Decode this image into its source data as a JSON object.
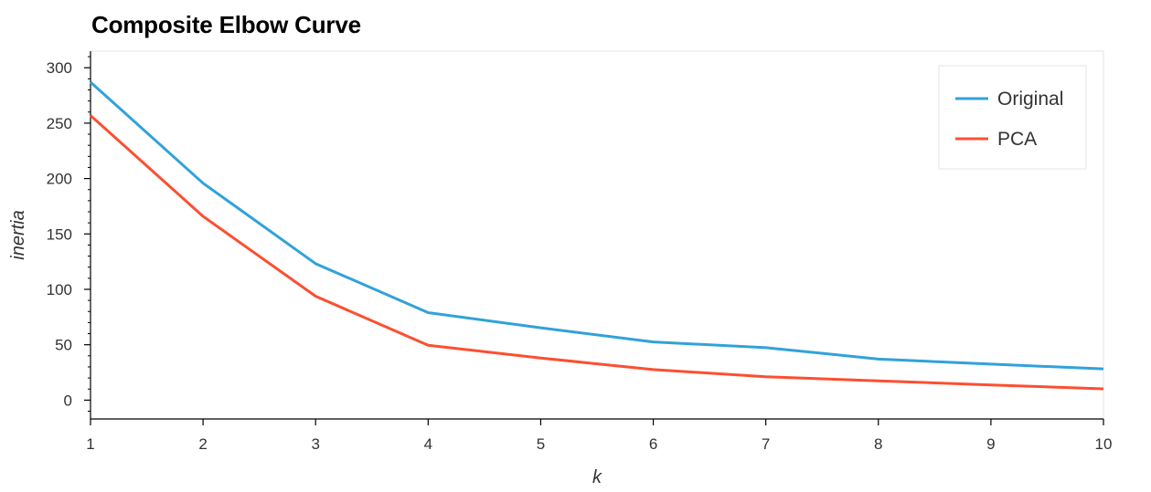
{
  "chart_data": {
    "type": "line",
    "title": "Composite Elbow Curve",
    "xlabel": "k",
    "ylabel": "inertia",
    "x": [
      1,
      2,
      3,
      4,
      5,
      6,
      7,
      8,
      9,
      10
    ],
    "xlim": [
      1,
      10
    ],
    "ylim": [
      -17,
      315
    ],
    "xticks": [
      1,
      2,
      3,
      4,
      5,
      6,
      7,
      8,
      9,
      10
    ],
    "yticks": [
      0,
      50,
      100,
      150,
      200,
      250,
      300
    ],
    "grid": false,
    "legend_position": "top-right",
    "series": [
      {
        "name": "Original",
        "color": "#30a2da",
        "values": [
          287.0,
          195.8,
          123.2,
          79.0,
          65.3,
          52.5,
          47.4,
          37.1,
          32.5,
          28.2
        ]
      },
      {
        "name": "PCA",
        "color": "#fc4f30",
        "values": [
          256.9,
          165.9,
          93.8,
          49.5,
          38.0,
          27.6,
          21.1,
          17.4,
          13.7,
          10.2
        ]
      }
    ]
  }
}
